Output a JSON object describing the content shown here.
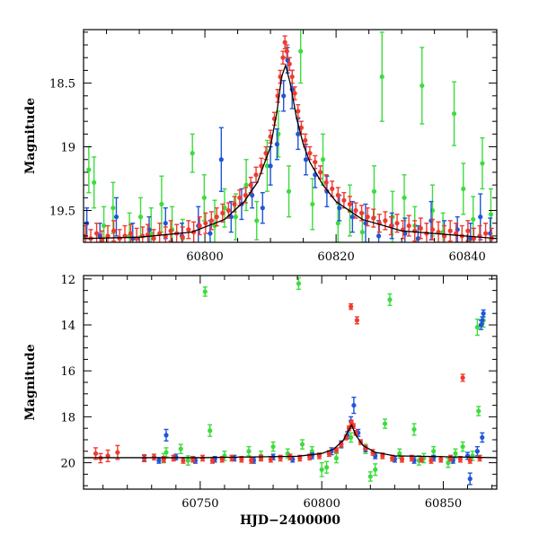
{
  "colors": {
    "red": "#f03a2e",
    "green": "#3ddc3d",
    "blue": "#1f55d8",
    "model": "#000000"
  },
  "chart_data": [
    {
      "type": "scatter",
      "title": "",
      "xlabel": "",
      "ylabel": "Magnitude",
      "xlim": [
        60781.5,
        60844.5
      ],
      "ylim": [
        19.75,
        18.08
      ],
      "y_inverted": true,
      "xticks": [
        60800,
        60820,
        60840
      ],
      "xtick_labels": [
        "60800",
        "60820",
        "60840"
      ],
      "yticks": [
        18.5,
        19,
        19.5
      ],
      "ytick_labels": [
        "18.5",
        "19",
        "19.5"
      ],
      "model_curve": {
        "color": "#000000",
        "x": [
          60781.5,
          60790,
          60798,
          60803,
          60806,
          60808,
          60810,
          60811,
          60811.7,
          60812.3,
          60813,
          60814,
          60815,
          60816,
          60818,
          60820,
          60824,
          60830,
          60844.5
        ],
        "y": [
          19.72,
          19.71,
          19.67,
          19.57,
          19.43,
          19.28,
          19.0,
          18.72,
          18.45,
          18.36,
          18.5,
          18.78,
          18.98,
          19.12,
          19.3,
          19.43,
          19.57,
          19.66,
          19.72
        ]
      },
      "series": [
        {
          "color": "#3ddc3d",
          "x": [
            60782.3,
            60783.1,
            60784.6,
            60786.0,
            60788.5,
            60790.2,
            60791.8,
            60793.4,
            60795.0,
            60796.6,
            60798.1,
            60799.9,
            60801.5,
            60803.0,
            60804.7,
            60806.3,
            60807.9,
            60809.5,
            60811.2,
            60812.8,
            60814.6,
            60816.4,
            60818.0,
            60820.3,
            60822.1,
            60824.0,
            60825.8,
            60827.0,
            60828.6,
            60830.4,
            60832.0,
            60833.1,
            60834.7,
            60836.3,
            60838.0,
            60839.4,
            60840.9,
            60842.3,
            60843.6
          ],
          "y": [
            19.18,
            19.28,
            19.62,
            19.48,
            19.7,
            19.55,
            19.68,
            19.45,
            19.65,
            19.72,
            19.05,
            19.4,
            19.62,
            19.48,
            19.55,
            19.3,
            19.58,
            19.15,
            18.9,
            19.35,
            18.25,
            19.45,
            19.1,
            19.6,
            19.5,
            19.67,
            19.35,
            18.45,
            19.55,
            19.4,
            19.62,
            18.52,
            19.5,
            19.67,
            18.74,
            19.33,
            19.57,
            19.13,
            19.53
          ],
          "err": [
            0.18,
            0.2,
            0.15,
            0.2,
            0.18,
            0.15,
            0.2,
            0.22,
            0.18,
            0.15,
            0.15,
            0.18,
            0.2,
            0.15,
            0.18,
            0.2,
            0.15,
            0.2,
            0.18,
            0.2,
            0.25,
            0.2,
            0.2,
            0.15,
            0.2,
            0.15,
            0.2,
            0.35,
            0.2,
            0.18,
            0.15,
            0.3,
            0.2,
            0.15,
            0.25,
            0.2,
            0.18,
            0.2,
            0.2
          ]
        },
        {
          "color": "#1f55d8",
          "x": [
            60782.0,
            60784.0,
            60786.5,
            60789.0,
            60791.5,
            60794.0,
            60796.5,
            60799.0,
            60800.8,
            60802.5,
            60804.0,
            60805.6,
            60807.2,
            60808.8,
            60810.0,
            60811.0,
            60812.0,
            60812.6,
            60813.3,
            60814.2,
            60815.4,
            60816.8,
            60818.6,
            60820.5,
            60822.5,
            60824.5,
            60826.5,
            60828.5,
            60830.5,
            60832.5,
            60834.5,
            60836.5,
            60838.5,
            60840.5,
            60842.0,
            60843.5
          ],
          "y": [
            19.6,
            19.7,
            19.55,
            19.72,
            19.65,
            19.6,
            19.7,
            19.62,
            19.68,
            19.1,
            19.55,
            19.45,
            19.38,
            19.48,
            19.15,
            18.98,
            18.6,
            18.32,
            18.55,
            18.9,
            19.1,
            19.22,
            19.35,
            19.48,
            19.55,
            19.6,
            19.7,
            19.62,
            19.68,
            19.72,
            19.58,
            19.7,
            19.65,
            19.72,
            19.55,
            19.68
          ],
          "err": [
            0.12,
            0.1,
            0.15,
            0.12,
            0.1,
            0.12,
            0.1,
            0.15,
            0.1,
            0.25,
            0.12,
            0.12,
            0.1,
            0.12,
            0.15,
            0.12,
            0.12,
            0.1,
            0.15,
            0.12,
            0.12,
            0.1,
            0.12,
            0.1,
            0.12,
            0.15,
            0.12,
            0.1,
            0.12,
            0.1,
            0.15,
            0.12,
            0.1,
            0.12,
            0.18,
            0.12
          ]
        },
        {
          "color": "#f03a2e",
          "x": [
            60781.8,
            60782.6,
            60783.5,
            60784.3,
            60785.2,
            60786.1,
            60787.0,
            60787.8,
            60788.7,
            60789.6,
            60790.5,
            60791.3,
            60792.2,
            60793.1,
            60794.0,
            60794.8,
            60795.7,
            60796.6,
            60797.5,
            60798.3,
            60799.2,
            60800.1,
            60801.0,
            60801.8,
            60802.7,
            60803.6,
            60804.5,
            60805.3,
            60806.2,
            60807.0,
            60807.8,
            60808.6,
            60809.3,
            60810.0,
            60810.6,
            60811.1,
            60811.5,
            60811.9,
            60812.2,
            60812.5,
            60812.9,
            60813.3,
            60813.7,
            60814.2,
            60814.7,
            60815.3,
            60816.0,
            60816.8,
            60817.6,
            60818.5,
            60819.4,
            60820.3,
            60821.2,
            60822.1,
            60823.0,
            60823.9,
            60824.8,
            60825.7,
            60826.6,
            60827.5,
            60828.4,
            60829.3,
            60830.2,
            60831.1,
            60832.0,
            60832.9,
            60833.8,
            60834.7,
            60835.6,
            60836.5,
            60837.4,
            60838.3,
            60839.2,
            60840.1,
            60841.0,
            60841.9,
            60842.8,
            60843.7
          ],
          "y": [
            19.7,
            19.72,
            19.68,
            19.73,
            19.7,
            19.66,
            19.72,
            19.7,
            19.68,
            19.72,
            19.7,
            19.69,
            19.72,
            19.68,
            19.7,
            19.66,
            19.68,
            19.71,
            19.65,
            19.67,
            19.62,
            19.6,
            19.58,
            19.55,
            19.52,
            19.5,
            19.45,
            19.4,
            19.38,
            19.3,
            19.22,
            19.15,
            19.05,
            18.92,
            18.78,
            18.6,
            18.45,
            18.3,
            18.18,
            18.25,
            18.35,
            18.45,
            18.58,
            18.72,
            18.85,
            18.95,
            19.05,
            19.12,
            19.2,
            19.28,
            19.33,
            19.38,
            19.42,
            19.45,
            19.5,
            19.52,
            19.55,
            19.56,
            19.6,
            19.58,
            19.62,
            19.6,
            19.65,
            19.62,
            19.66,
            19.64,
            19.68,
            19.65,
            19.67,
            19.7,
            19.66,
            19.68,
            19.7,
            19.66,
            19.72,
            19.7,
            19.68,
            19.72
          ],
          "err": [
            0.08,
            0.07,
            0.08,
            0.07,
            0.08,
            0.08,
            0.07,
            0.08,
            0.07,
            0.08,
            0.07,
            0.08,
            0.07,
            0.08,
            0.07,
            0.08,
            0.07,
            0.08,
            0.07,
            0.08,
            0.07,
            0.08,
            0.07,
            0.07,
            0.07,
            0.06,
            0.06,
            0.06,
            0.06,
            0.06,
            0.06,
            0.06,
            0.05,
            0.05,
            0.05,
            0.05,
            0.05,
            0.05,
            0.05,
            0.05,
            0.05,
            0.05,
            0.05,
            0.05,
            0.05,
            0.05,
            0.05,
            0.05,
            0.05,
            0.06,
            0.06,
            0.06,
            0.06,
            0.06,
            0.06,
            0.06,
            0.07,
            0.07,
            0.07,
            0.07,
            0.07,
            0.07,
            0.07,
            0.08,
            0.08,
            0.08,
            0.08,
            0.08,
            0.08,
            0.08,
            0.08,
            0.08,
            0.08,
            0.08,
            0.08,
            0.08,
            0.08,
            0.08
          ]
        }
      ]
    },
    {
      "type": "scatter",
      "title": "",
      "xlabel": "HJD−2400000",
      "ylabel": "Magnitude",
      "xlim": [
        60702,
        60872
      ],
      "ylim": [
        21.15,
        11.85
      ],
      "y_inverted": true,
      "xticks": [
        60750,
        60800,
        60850
      ],
      "xtick_labels": [
        "60750",
        "60800",
        "60850"
      ],
      "yticks": [
        12,
        14,
        16,
        18,
        20
      ],
      "ytick_labels": [
        "12",
        "14",
        "16",
        "18",
        "20"
      ],
      "model_curve": {
        "color": "#000000",
        "x": [
          60702,
          60750,
          60790,
          60800,
          60805,
          60809,
          60811,
          60812.3,
          60814,
          60817,
          60822,
          60830,
          60872
        ],
        "y": [
          19.78,
          19.78,
          19.72,
          19.6,
          19.4,
          19.0,
          18.6,
          18.36,
          18.8,
          19.25,
          19.55,
          19.7,
          19.78
        ]
      },
      "series": [
        {
          "color": "#3ddc3d",
          "x": [
            60752.0,
            60790.5,
            60828.0,
            60864.0,
            60866.5,
            60864.5,
            60754.0,
            60736.0,
            60742.0,
            60760.0,
            60770.0,
            60780.0,
            60786.0,
            60792.0,
            60796.0,
            60802.0,
            60806.0,
            60818.0,
            60822.0,
            60826.0,
            60832.0,
            60838.0,
            60842.0,
            60846.0,
            60852.0,
            60858.0,
            60862.0,
            60735.0,
            60745.0,
            60775.0,
            60800.0,
            60820.0,
            60840.0,
            60855.0,
            60812.0
          ],
          "y": [
            12.55,
            12.2,
            12.9,
            14.1,
            13.8,
            17.75,
            18.6,
            19.55,
            19.4,
            19.7,
            19.5,
            19.3,
            19.6,
            19.2,
            19.5,
            20.2,
            19.8,
            19.4,
            20.3,
            18.3,
            19.6,
            18.55,
            19.8,
            19.5,
            20.0,
            19.3,
            19.7,
            19.8,
            19.9,
            19.7,
            20.3,
            20.6,
            19.9,
            19.6,
            18.9
          ],
          "err": [
            0.2,
            0.25,
            0.25,
            0.35,
            0.3,
            0.2,
            0.25,
            0.2,
            0.2,
            0.2,
            0.2,
            0.2,
            0.2,
            0.2,
            0.2,
            0.25,
            0.2,
            0.2,
            0.25,
            0.2,
            0.2,
            0.25,
            0.2,
            0.2,
            0.2,
            0.2,
            0.2,
            0.2,
            0.2,
            0.2,
            0.3,
            0.2,
            0.2,
            0.2,
            0.2
          ]
        },
        {
          "color": "#1f55d8",
          "x": [
            60736.0,
            60866.5,
            60866.0,
            60865.5,
            60861.0,
            60727.0,
            60733.0,
            60740.0,
            60748.0,
            60756.0,
            60764.0,
            60772.0,
            60780.0,
            60788.0,
            60796.0,
            60804.0,
            60808.0,
            60810.5,
            60812.0,
            60813.2,
            60815.0,
            60818.0,
            60822.0,
            60830.0,
            60838.0,
            60846.0,
            60854.0,
            60860.0,
            60864.0,
            60866.0
          ],
          "y": [
            18.8,
            13.5,
            13.8,
            14.0,
            20.7,
            19.8,
            19.9,
            19.75,
            19.9,
            19.85,
            19.8,
            19.9,
            19.75,
            19.85,
            19.7,
            19.5,
            19.2,
            18.8,
            18.2,
            17.5,
            18.7,
            19.4,
            19.7,
            19.85,
            19.9,
            19.8,
            19.9,
            19.7,
            19.5,
            18.9
          ],
          "err": [
            0.25,
            0.15,
            0.15,
            0.2,
            0.25,
            0.12,
            0.12,
            0.12,
            0.12,
            0.12,
            0.12,
            0.12,
            0.12,
            0.12,
            0.12,
            0.15,
            0.15,
            0.15,
            0.2,
            0.35,
            0.15,
            0.12,
            0.12,
            0.12,
            0.12,
            0.12,
            0.12,
            0.15,
            0.2,
            0.2
          ]
        },
        {
          "color": "#f03a2e",
          "x": [
            60812.0,
            60814.5,
            60858.0,
            60707.0,
            60709.0,
            60712.0,
            60716.0,
            60727.0,
            60731.0,
            60735.0,
            60739.0,
            60743.0,
            60747.0,
            60751.0,
            60755.0,
            60759.0,
            60763.0,
            60767.0,
            60771.0,
            60775.0,
            60779.0,
            60783.0,
            60787.0,
            60791.0,
            60795.0,
            60799.0,
            60803.0,
            60806.0,
            60808.0,
            60810.0,
            60811.2,
            60812.2,
            60813.0,
            60814.0,
            60816.0,
            60818.0,
            60821.0,
            60825.0,
            60829.0,
            60833.0,
            60837.0,
            60841.0,
            60845.0,
            60849.0,
            60853.0,
            60857.0,
            60861.0,
            60865.0
          ],
          "y": [
            13.2,
            13.8,
            16.3,
            19.6,
            19.8,
            19.7,
            19.55,
            19.8,
            19.75,
            19.85,
            19.8,
            19.9,
            19.85,
            19.8,
            19.9,
            19.85,
            19.8,
            19.85,
            19.9,
            19.8,
            19.85,
            19.8,
            19.75,
            19.8,
            19.75,
            19.7,
            19.6,
            19.45,
            19.2,
            18.9,
            18.5,
            18.25,
            18.4,
            18.7,
            19.1,
            19.35,
            19.55,
            19.7,
            19.8,
            19.85,
            19.8,
            19.85,
            19.9,
            19.85,
            19.8,
            19.85,
            19.9,
            19.8
          ],
          "err": [
            0.12,
            0.15,
            0.15,
            0.25,
            0.2,
            0.25,
            0.3,
            0.15,
            0.12,
            0.12,
            0.12,
            0.12,
            0.12,
            0.12,
            0.12,
            0.12,
            0.12,
            0.12,
            0.12,
            0.12,
            0.12,
            0.12,
            0.12,
            0.12,
            0.12,
            0.12,
            0.12,
            0.1,
            0.1,
            0.1,
            0.1,
            0.1,
            0.1,
            0.1,
            0.1,
            0.1,
            0.12,
            0.12,
            0.12,
            0.12,
            0.12,
            0.12,
            0.12,
            0.12,
            0.12,
            0.12,
            0.12,
            0.12
          ]
        }
      ]
    }
  ]
}
